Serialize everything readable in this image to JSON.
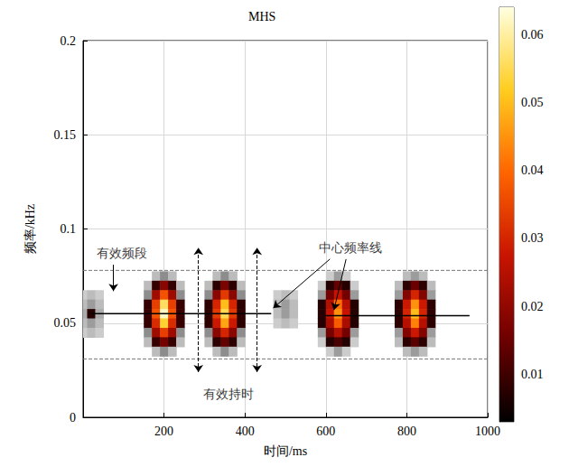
{
  "chart_data": {
    "type": "heatmap",
    "title": "MHS",
    "xlabel": "时间/ms",
    "ylabel": "频率/kHz",
    "xlim": [
      0,
      1000
    ],
    "xticks": [
      200,
      400,
      600,
      800,
      1000
    ],
    "ylim": [
      0,
      0.2
    ],
    "yticks": [
      0,
      0.05,
      0.1,
      0.15,
      0.2
    ],
    "grid": true,
    "cells": [
      {
        "t": [
          0,
          20,
          40
        ],
        "f": [
          0.065,
          0.06,
          0.055,
          0.05,
          0.045
        ],
        "values": [
          [
            0.002,
            0.003,
            0.002
          ],
          [
            0.003,
            0.005,
            0.003
          ],
          [
            0.004,
            0.007,
            0.004
          ],
          [
            0.003,
            0.005,
            0.003
          ],
          [
            0.002,
            0.003,
            0.002
          ]
        ]
      },
      {
        "t": [
          160,
          180,
          200,
          220,
          240
        ],
        "f": [
          0.075,
          0.07,
          0.065,
          0.06,
          0.055,
          0.05,
          0.045,
          0.04,
          0.035
        ],
        "values": [
          [
            0,
            0.003,
            0.006,
            0.003,
            0
          ],
          [
            0.003,
            0.009,
            0.019,
            0.009,
            0.003
          ],
          [
            0.006,
            0.022,
            0.037,
            0.022,
            0.006
          ],
          [
            0.009,
            0.034,
            0.056,
            0.034,
            0.009
          ],
          [
            0.009,
            0.037,
            0.062,
            0.037,
            0.009
          ],
          [
            0.009,
            0.031,
            0.053,
            0.031,
            0.009
          ],
          [
            0.006,
            0.022,
            0.034,
            0.022,
            0.006
          ],
          [
            0.003,
            0.009,
            0.016,
            0.009,
            0.003
          ],
          [
            0,
            0.003,
            0.006,
            0.003,
            0
          ]
        ]
      },
      {
        "t": [
          310,
          330,
          350,
          370,
          390
        ],
        "f": [
          0.075,
          0.07,
          0.065,
          0.06,
          0.055,
          0.05,
          0.045,
          0.04,
          0.035
        ],
        "values": [
          [
            0,
            0.003,
            0.006,
            0.003,
            0
          ],
          [
            0.003,
            0.008,
            0.017,
            0.008,
            0.003
          ],
          [
            0.006,
            0.019,
            0.033,
            0.019,
            0.006
          ],
          [
            0.008,
            0.03,
            0.05,
            0.03,
            0.008
          ],
          [
            0.008,
            0.033,
            0.055,
            0.033,
            0.008
          ],
          [
            0.008,
            0.028,
            0.047,
            0.028,
            0.008
          ],
          [
            0.006,
            0.019,
            0.03,
            0.019,
            0.006
          ],
          [
            0.003,
            0.008,
            0.014,
            0.008,
            0.003
          ],
          [
            0,
            0.003,
            0.006,
            0.003,
            0
          ]
        ]
      },
      {
        "t": [
          480,
          500,
          520
        ],
        "f": [
          0.065,
          0.06,
          0.055,
          0.05
        ],
        "values": [
          [
            0.002,
            0.003,
            0.002
          ],
          [
            0.003,
            0.005,
            0.003
          ],
          [
            0.003,
            0.005,
            0.003
          ],
          [
            0.002,
            0.003,
            0.002
          ]
        ]
      },
      {
        "t": [
          590,
          610,
          630,
          650,
          670
        ],
        "f": [
          0.075,
          0.07,
          0.065,
          0.06,
          0.055,
          0.05,
          0.045,
          0.04,
          0.035
        ],
        "values": [
          [
            0,
            0.002,
            0.005,
            0.002,
            0
          ],
          [
            0.002,
            0.007,
            0.014,
            0.007,
            0.002
          ],
          [
            0.005,
            0.016,
            0.027,
            0.016,
            0.005
          ],
          [
            0.007,
            0.025,
            0.041,
            0.025,
            0.007
          ],
          [
            0.007,
            0.027,
            0.045,
            0.027,
            0.007
          ],
          [
            0.007,
            0.023,
            0.038,
            0.023,
            0.007
          ],
          [
            0.005,
            0.016,
            0.025,
            0.016,
            0.005
          ],
          [
            0.002,
            0.007,
            0.011,
            0.007,
            0.002
          ],
          [
            0,
            0.002,
            0.005,
            0.002,
            0
          ]
        ]
      },
      {
        "t": [
          780,
          800,
          820,
          840,
          860
        ],
        "f": [
          0.075,
          0.07,
          0.065,
          0.06,
          0.055,
          0.05,
          0.045,
          0.04,
          0.035
        ],
        "values": [
          [
            0,
            0.003,
            0.005,
            0.003,
            0
          ],
          [
            0.003,
            0.008,
            0.015,
            0.008,
            0.003
          ],
          [
            0.005,
            0.018,
            0.03,
            0.018,
            0.005
          ],
          [
            0.008,
            0.028,
            0.045,
            0.028,
            0.008
          ],
          [
            0.008,
            0.03,
            0.05,
            0.03,
            0.008
          ],
          [
            0.008,
            0.025,
            0.043,
            0.025,
            0.008
          ],
          [
            0.005,
            0.018,
            0.028,
            0.018,
            0.005
          ],
          [
            0.003,
            0.008,
            0.013,
            0.008,
            0.003
          ],
          [
            0,
            0.003,
            0.005,
            0.003,
            0
          ]
        ]
      }
    ],
    "colorbar": {
      "range": [
        0.003,
        0.064
      ],
      "ticks": [
        0.01,
        0.02,
        0.03,
        0.04,
        0.05,
        0.06
      ]
    },
    "band_lines": [
      0.078,
      0.031
    ],
    "center_lines": [
      {
        "x": [
          20,
          465
        ],
        "y": 0.055
      },
      {
        "x": [
          600,
          955
        ],
        "y": 0.054
      }
    ],
    "duration_lines": {
      "x": [
        285,
        430
      ],
      "y": [
        0.024,
        0.09
      ]
    },
    "annotations": [
      {
        "text": "有效频段",
        "xy": [
          95,
          0.087
        ],
        "arrows": [
          [
            [
              75,
              0.081
            ],
            [
              75,
              0.067
            ]
          ]
        ]
      },
      {
        "text": "中心频率线",
        "xy": [
          660,
          0.09
        ],
        "arrows": [
          [
            [
              610,
              0.084
            ],
            [
              470,
              0.058
            ]
          ],
          [
            [
              650,
              0.084
            ],
            [
              620,
              0.057
            ]
          ]
        ]
      },
      {
        "text": "有效持时",
        "xy": [
          360,
          0.012
        ]
      }
    ]
  }
}
